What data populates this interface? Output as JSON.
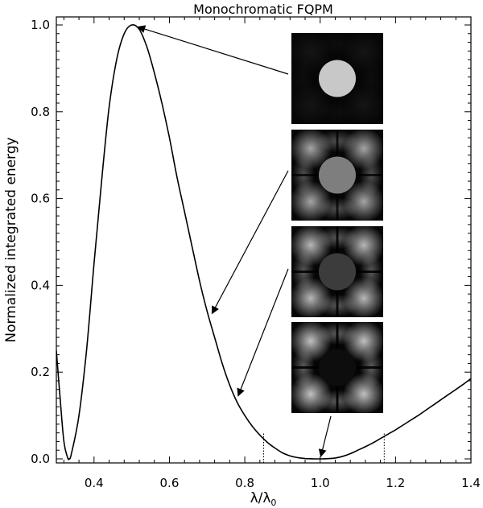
{
  "chart_data": {
    "type": "line",
    "title": "Monochromatic FQPM",
    "xlabel": "λ/λ₀",
    "ylabel": "Normalized integrated energy",
    "xlim": [
      0.3,
      1.4
    ],
    "ylim": [
      0.0,
      1.0
    ],
    "xticks": [
      "0.4",
      "0.6",
      "0.8",
      "1.0",
      "1.2",
      "1.4"
    ],
    "yticks": [
      "0.0",
      "0.2",
      "0.4",
      "0.6",
      "0.8",
      "1.0"
    ],
    "grid": false,
    "series": [
      {
        "x": [
          0.3,
          0.31,
          0.32,
          0.33,
          0.334,
          0.34,
          0.36,
          0.38,
          0.4,
          0.42,
          0.44,
          0.46,
          0.48,
          0.5,
          0.52,
          0.54,
          0.56,
          0.58,
          0.6,
          0.62,
          0.64,
          0.66,
          0.68,
          0.7,
          0.72,
          0.74,
          0.76,
          0.78,
          0.8,
          0.82,
          0.84,
          0.86,
          0.88,
          0.9,
          0.92,
          0.94,
          0.96,
          0.98,
          1.0,
          1.02,
          1.04,
          1.06,
          1.08,
          1.1,
          1.12,
          1.14,
          1.16,
          1.18,
          1.2,
          1.22,
          1.24,
          1.26,
          1.28,
          1.3,
          1.32,
          1.34,
          1.36,
          1.38,
          1.4
        ],
        "y": [
          0.25,
          0.14,
          0.04,
          0.003,
          0.0,
          0.012,
          0.1,
          0.25,
          0.45,
          0.64,
          0.81,
          0.92,
          0.98,
          1.0,
          0.99,
          0.95,
          0.89,
          0.82,
          0.74,
          0.65,
          0.57,
          0.49,
          0.41,
          0.34,
          0.28,
          0.22,
          0.17,
          0.13,
          0.1,
          0.075,
          0.055,
          0.038,
          0.025,
          0.014,
          0.007,
          0.003,
          0.0008,
          0.0001,
          0.0,
          0.0005,
          0.002,
          0.006,
          0.012,
          0.02,
          0.028,
          0.037,
          0.047,
          0.057,
          0.067,
          0.078,
          0.089,
          0.1,
          0.112,
          0.124,
          0.136,
          0.148,
          0.16,
          0.172,
          0.185
        ]
      }
    ],
    "reference_lines": [
      0.85,
      1.17
    ],
    "insets": [
      {
        "disk_color": "#c8c8c8",
        "halo": 0.08,
        "points_to": [
          0.5,
          1.0
        ]
      },
      {
        "disk_color": "#7e7e7e",
        "halo": 0.85,
        "points_to": [
          0.71,
          0.33
        ]
      },
      {
        "disk_color": "#3c3c3c",
        "halo": 0.95,
        "points_to": [
          0.78,
          0.14
        ]
      },
      {
        "disk_color": "#0d0d0d",
        "halo": 1.0,
        "points_to": [
          1.0,
          0.0
        ]
      }
    ]
  }
}
